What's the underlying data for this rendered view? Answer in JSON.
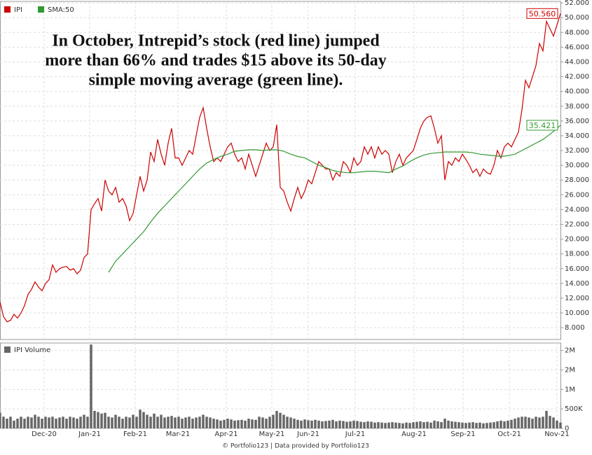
{
  "chart_data": [
    {
      "type": "line",
      "annotation": [
        "In October, Intrepid’s stock (red line) jumped",
        "more than 66% and trades $15 above its 50-day",
        "simple moving average (green line)."
      ],
      "legend": "top-left",
      "grid": true,
      "xlim": [
        0,
        160
      ],
      "xticks": [
        {
          "value": 12.6,
          "label": "Dec-20"
        },
        {
          "value": 25.6,
          "label": "Jan-21"
        },
        {
          "value": 38.6,
          "label": "Feb-21"
        },
        {
          "value": 50.8,
          "label": "Mar-21"
        },
        {
          "value": 64.6,
          "label": "Apr-21"
        },
        {
          "value": 77.6,
          "label": "May-21"
        },
        {
          "value": 88,
          "label": "Jun-21"
        },
        {
          "value": 101.4,
          "label": "Jul-21"
        },
        {
          "value": 118.2,
          "label": "Aug-21"
        },
        {
          "value": 132.2,
          "label": "Sep-21"
        },
        {
          "value": 145.4,
          "label": "Oct-21"
        },
        {
          "value": 159,
          "label": "Nov-21"
        }
      ],
      "ylim": [
        6.4,
        52.2
      ],
      "yticks": [
        {
          "value": 8,
          "label": "8.000"
        },
        {
          "value": 10,
          "label": "10.000"
        },
        {
          "value": 12,
          "label": "12.000"
        },
        {
          "value": 14,
          "label": "14.000"
        },
        {
          "value": 16,
          "label": "16.000"
        },
        {
          "value": 18,
          "label": "18.000"
        },
        {
          "value": 20,
          "label": "20.000"
        },
        {
          "value": 22,
          "label": "22.000"
        },
        {
          "value": 24,
          "label": "24.000"
        },
        {
          "value": 26,
          "label": "26.000"
        },
        {
          "value": 28,
          "label": "28.000"
        },
        {
          "value": 30,
          "label": "30.000"
        },
        {
          "value": 32,
          "label": "32.000"
        },
        {
          "value": 34,
          "label": "34.000"
        },
        {
          "value": 36,
          "label": "36.000"
        },
        {
          "value": 38,
          "label": "38.000"
        },
        {
          "value": 40,
          "label": "40.000"
        },
        {
          "value": 42,
          "label": "42.000"
        },
        {
          "value": 44,
          "label": "44.000"
        },
        {
          "value": 46,
          "label": "46.000"
        },
        {
          "value": 48,
          "label": "48.000"
        },
        {
          "value": 50,
          "label": "50.000"
        },
        {
          "value": 52,
          "label": "52.000"
        }
      ],
      "series": [
        {
          "name": "IPI",
          "color": "#cc0000",
          "last_label": "50.560",
          "values": [
            11.5,
            9.5,
            8.8,
            9.0,
            9.8,
            9.3,
            10.0,
            11.0,
            12.5,
            13.2,
            14.2,
            13.5,
            13.0,
            14.0,
            14.5,
            16.5,
            15.5,
            16.0,
            16.2,
            16.3,
            15.8,
            16.0,
            15.3,
            15.8,
            17.5,
            18.0,
            24.0,
            24.8,
            25.5,
            23.8,
            28.0,
            26.5,
            26.0,
            27.0,
            25.0,
            25.5,
            24.5,
            22.5,
            23.5,
            26.0,
            28.5,
            26.5,
            28.0,
            31.8,
            30.5,
            33.5,
            31.5,
            30.0,
            33.0,
            35.0,
            31.0,
            31.0,
            30.0,
            31.0,
            32.0,
            31.5,
            34.0,
            36.5,
            37.8,
            35.0,
            32.5,
            30.5,
            31.0,
            30.5,
            31.5,
            32.5,
            33.0,
            31.5,
            30.5,
            31.0,
            29.5,
            31.5,
            30.0,
            28.5,
            30.0,
            31.5,
            33.0,
            32.0,
            32.5,
            35.5,
            27.0,
            26.5,
            25.0,
            23.8,
            25.5,
            27.0,
            25.5,
            26.5,
            28.0,
            27.5,
            29.0,
            30.5,
            30.0,
            29.5,
            29.5,
            28.0,
            29.0,
            28.5,
            30.5,
            30.0,
            29.0,
            31.0,
            30.0,
            30.5,
            32.5,
            31.5,
            32.5,
            31.0,
            32.5,
            31.5,
            32.0,
            31.5,
            29.0,
            30.5,
            31.5,
            30.0,
            31.0,
            31.5,
            32.0,
            33.5,
            35.0,
            36.0,
            36.5,
            36.7,
            35.0,
            33.0,
            34.0,
            28.0,
            30.5,
            30.0,
            31.0,
            30.5,
            31.5,
            30.8,
            30.0,
            29.0,
            29.5,
            28.5,
            29.5,
            29.0,
            28.8,
            30.0,
            32.0,
            31.0,
            32.5,
            33.0,
            32.5,
            33.5,
            34.5,
            37.5,
            41.5,
            40.5,
            42.0,
            43.5,
            46.5,
            45.5,
            49.5,
            48.5,
            47.5,
            49.0,
            50.56
          ]
        },
        {
          "name": "SMA:50",
          "color": "#339933",
          "last_label": "35.421",
          "x": [
            31,
            33,
            35,
            37,
            39,
            41,
            43,
            45,
            47,
            49,
            51,
            53,
            55,
            57,
            59,
            61,
            63,
            65,
            67,
            69,
            71,
            73,
            75,
            77,
            79,
            81,
            83,
            85,
            87,
            89,
            91,
            93,
            95,
            97,
            99,
            101,
            103,
            105,
            107,
            109,
            111,
            113,
            115,
            117,
            119,
            121,
            123,
            125,
            127,
            129,
            131,
            133,
            135,
            137,
            139,
            141,
            143,
            145,
            147,
            149,
            151,
            153,
            155,
            157,
            159,
            160
          ],
          "values": [
            15.5,
            17.0,
            18.0,
            19.0,
            20.0,
            21.0,
            22.3,
            23.5,
            24.5,
            25.5,
            26.5,
            27.5,
            28.5,
            29.5,
            30.3,
            30.8,
            31.2,
            31.5,
            31.9,
            32.0,
            32.1,
            32.1,
            32.0,
            32.1,
            32.1,
            31.9,
            31.5,
            31.2,
            31.0,
            30.5,
            30.0,
            29.7,
            29.3,
            29.1,
            29.0,
            29.0,
            29.1,
            29.2,
            29.2,
            29.1,
            29.0,
            29.5,
            29.9,
            30.5,
            31.0,
            31.4,
            31.6,
            31.7,
            31.8,
            31.8,
            31.8,
            31.8,
            31.7,
            31.5,
            31.4,
            31.3,
            31.2,
            31.3,
            31.5,
            32.0,
            32.5,
            33.0,
            33.5,
            34.2,
            35.0,
            35.421
          ]
        }
      ]
    },
    {
      "type": "bar",
      "series": [
        {
          "name": "IPI Volume",
          "color": "#666666",
          "values": [
            400000,
            300000,
            250000,
            300000,
            200000,
            250000,
            300000,
            250000,
            300000,
            280000,
            350000,
            300000,
            250000,
            300000,
            280000,
            300000,
            250000,
            280000,
            300000,
            250000,
            300000,
            280000,
            250000,
            300000,
            350000,
            300000,
            2150000,
            450000,
            420000,
            380000,
            400000,
            300000,
            280000,
            350000,
            300000,
            250000,
            300000,
            280000,
            350000,
            300000,
            480000,
            420000,
            350000,
            300000,
            380000,
            300000,
            350000,
            280000,
            300000,
            320000,
            280000,
            300000,
            250000,
            280000,
            300000,
            250000,
            280000,
            300000,
            350000,
            300000,
            280000,
            250000,
            230000,
            200000,
            220000,
            250000,
            230000,
            200000,
            210000,
            220000,
            200000,
            250000,
            230000,
            220000,
            300000,
            280000,
            250000,
            300000,
            350000,
            450000,
            400000,
            350000,
            300000,
            280000,
            250000,
            220000,
            200000,
            230000,
            210000,
            200000,
            220000,
            200000,
            180000,
            190000,
            200000,
            220000,
            180000,
            200000,
            190000,
            170000,
            180000,
            200000,
            190000,
            170000,
            160000,
            180000,
            170000,
            150000,
            160000,
            150000,
            140000,
            150000,
            160000,
            150000,
            140000,
            130000,
            150000,
            140000,
            160000,
            170000,
            180000,
            160000,
            170000,
            150000,
            200000,
            180000,
            160000,
            250000,
            200000,
            180000,
            170000,
            160000,
            150000,
            140000,
            150000,
            160000,
            140000,
            150000,
            130000,
            140000,
            150000,
            160000,
            180000,
            200000,
            180000,
            200000,
            220000,
            250000,
            280000,
            300000,
            300000,
            280000,
            250000,
            300000,
            280000,
            300000,
            450000,
            320000,
            280000,
            200000,
            150000
          ]
        }
      ],
      "xlim": [
        0,
        160
      ],
      "ylim": [
        0,
        2190000
      ],
      "yticks": [
        0,
        {
          "value": 500000,
          "label": "500K"
        },
        {
          "value": 1000000,
          "label": "1M"
        },
        {
          "value": 1500000,
          "label": "2M"
        },
        {
          "value": 2000000,
          "label": "2M"
        }
      ]
    }
  ],
  "footer": "© Portfolio123 | Data provided by Portfolio123"
}
